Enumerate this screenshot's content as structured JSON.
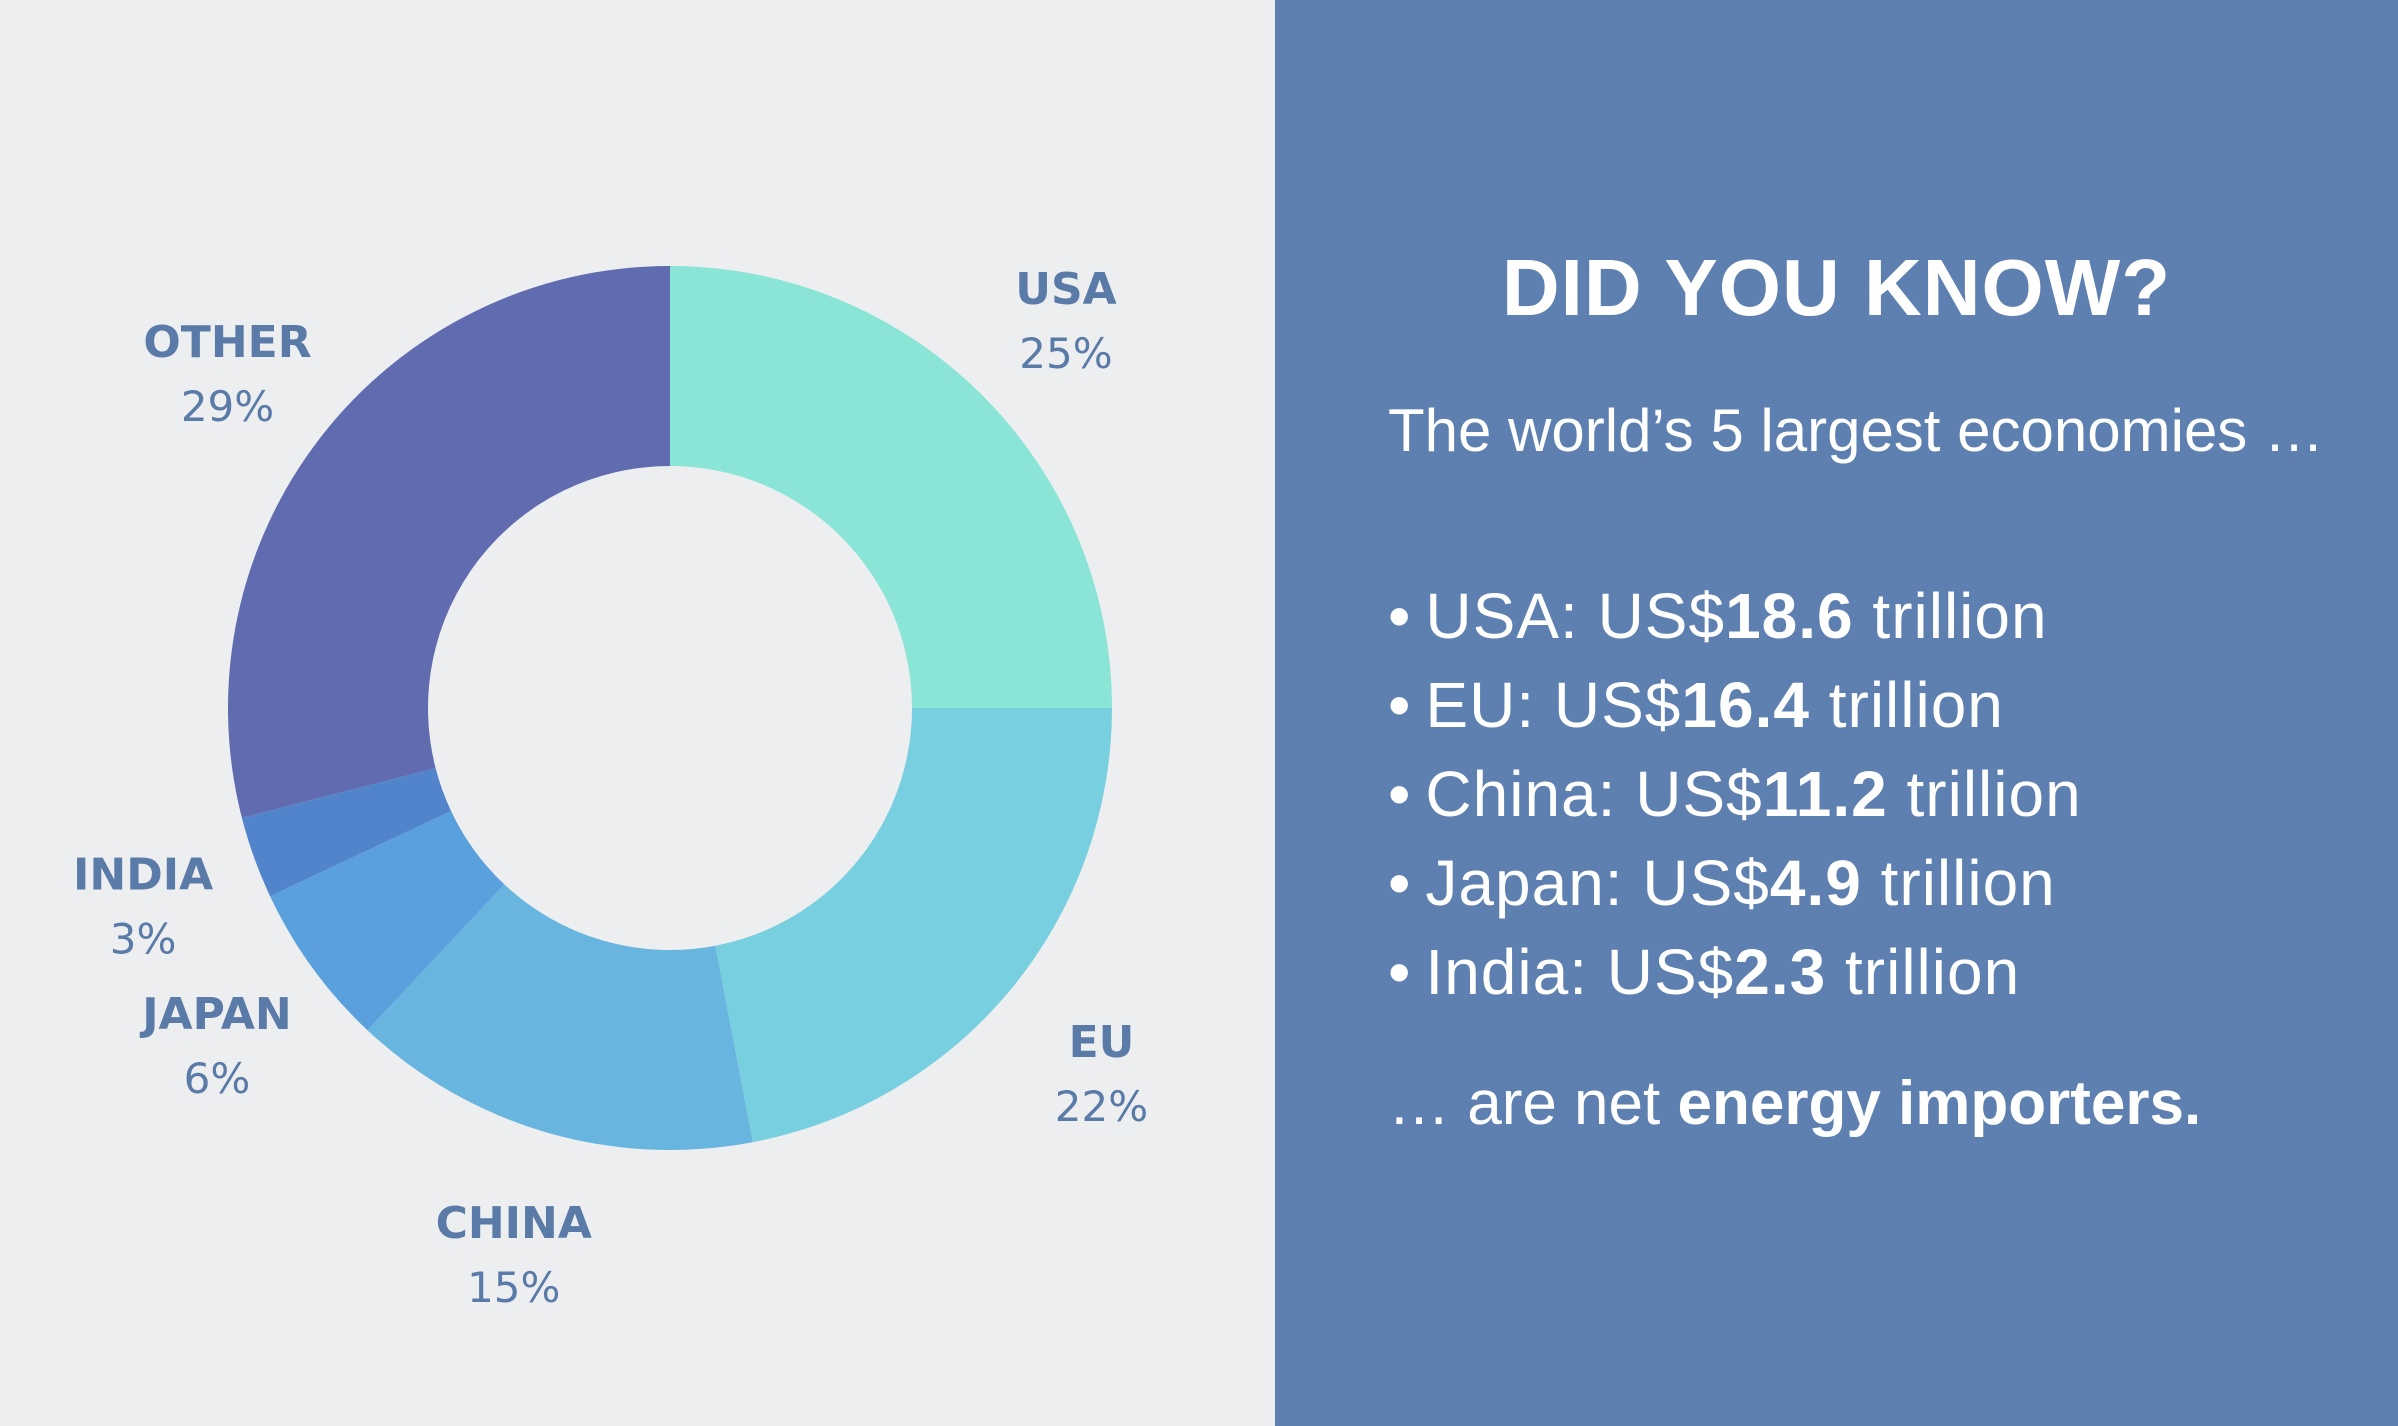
{
  "chart_data": {
    "type": "pie",
    "donut": true,
    "slices": [
      {
        "label": "USA",
        "value": 25,
        "value_label": "25%",
        "color": "#8ae5d6"
      },
      {
        "label": "EU",
        "value": 22,
        "value_label": "22%",
        "color": "#77cfdf"
      },
      {
        "label": "CHINA",
        "value": 15,
        "value_label": "15%",
        "color": "#68b6df"
      },
      {
        "label": "JAPAN",
        "value": 6,
        "value_label": "6%",
        "color": "#5aa0dc"
      },
      {
        "label": "INDIA",
        "value": 3,
        "value_label": "3%",
        "color": "#5184ca"
      },
      {
        "label": "OTHER",
        "value": 29,
        "value_label": "29%",
        "color": "#606bb0"
      }
    ]
  },
  "info": {
    "title": "DID YOU KNOW?",
    "intro": "The world’s 5 largest economies …",
    "items": [
      {
        "prefix": "USA: US$",
        "amount": "18.6",
        "suffix": " trillion"
      },
      {
        "prefix": "EU: US$",
        "amount": "16.4",
        "suffix": " trillion"
      },
      {
        "prefix": "China: US$",
        "amount": "11.2",
        "suffix": " trillion"
      },
      {
        "prefix": "Japan: US$",
        "amount": "4.9",
        "suffix": " trillion"
      },
      {
        "prefix": "India: US$",
        "amount": "2.3",
        "suffix": " trillion"
      }
    ],
    "bullet": "•",
    "outro_prefix": "… are net ",
    "outro_bold": "energy importers."
  },
  "colors": {
    "background": "#edeef0",
    "panel": "#5e80b0",
    "label": "#5a7aa8",
    "text": "#ffffff"
  }
}
